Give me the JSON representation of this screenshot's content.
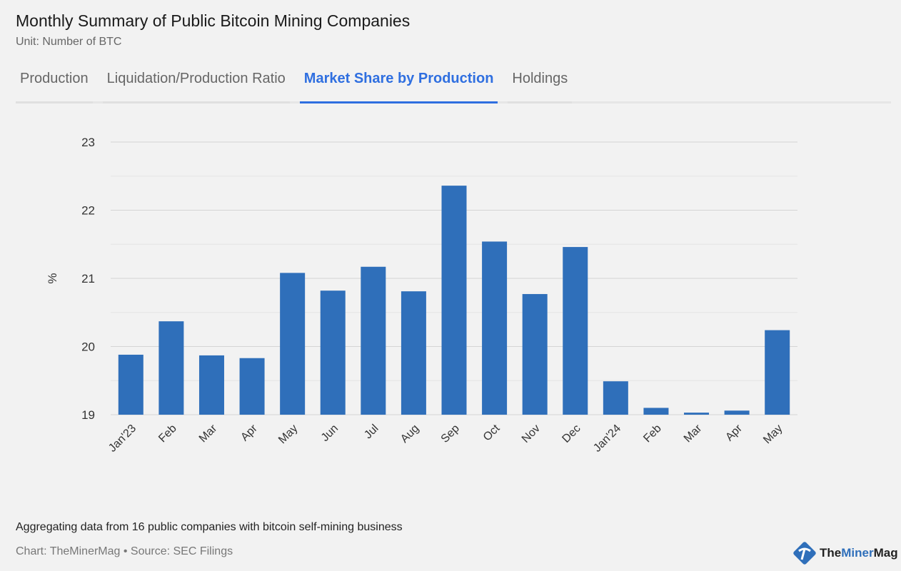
{
  "header": {
    "title": "Monthly Summary of Public Bitcoin Mining Companies",
    "subtitle": "Unit: Number of BTC"
  },
  "tabs": [
    {
      "label": "Production",
      "active": false
    },
    {
      "label": "Liquidation/Production Ratio",
      "active": false
    },
    {
      "label": "Market Share by Production",
      "active": true
    },
    {
      "label": "Holdings",
      "active": false
    }
  ],
  "chart_data": {
    "type": "bar",
    "title": "",
    "xlabel": "",
    "ylabel": "%",
    "ylim": [
      19,
      23
    ],
    "yticks": [
      19,
      20,
      21,
      22,
      23
    ],
    "grid": true,
    "color": "#2f6fba",
    "categories": [
      "Jan'23",
      "Feb",
      "Mar",
      "Apr",
      "May",
      "Jun",
      "Jul",
      "Aug",
      "Sep",
      "Oct",
      "Nov",
      "Dec",
      "Jan'24",
      "Feb",
      "Mar",
      "Apr",
      "May"
    ],
    "values": [
      19.88,
      20.37,
      19.87,
      19.83,
      21.08,
      20.82,
      21.17,
      20.81,
      22.36,
      21.54,
      20.77,
      21.46,
      19.49,
      19.1,
      19.03,
      19.06,
      20.24
    ]
  },
  "footer": {
    "note": "Aggregating data from 16 public companies with bitcoin self-mining business",
    "source": "Chart: TheMinerMag • Source: SEC Filings"
  },
  "logo": {
    "part1": "The",
    "part2": "Miner",
    "part3": "Mag",
    "accent": "#2f6fba"
  }
}
